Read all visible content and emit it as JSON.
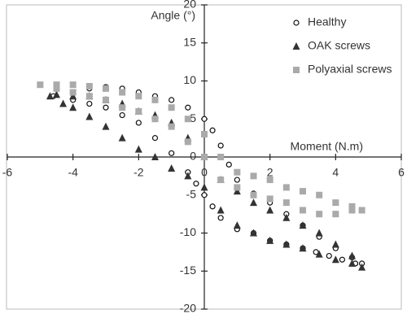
{
  "chart_data": {
    "type": "scatter",
    "xlabel": "Moment (N.m)",
    "ylabel": "Angle (°)",
    "xlim": [
      -6,
      6
    ],
    "ylim": [
      -20,
      20
    ],
    "xticks": [
      -6,
      -4,
      -2,
      0,
      2,
      4,
      6
    ],
    "yticks": [
      -20,
      -15,
      -10,
      -5,
      0,
      5,
      10,
      15,
      20
    ],
    "legend": "upper right",
    "series": [
      {
        "name": "Healthy",
        "color": "#111111",
        "marker": "open-circle",
        "x": [
          -4.6,
          -4,
          -3.5,
          -3,
          -2.5,
          -2,
          -1.5,
          -1,
          -0.5,
          0,
          0.25,
          0.5,
          0.75,
          1,
          1.5,
          2,
          2.5,
          3,
          3.5,
          4,
          4.5,
          4.8,
          4.6,
          4.2,
          3.8,
          3.4,
          3,
          2.5,
          2,
          1.5,
          1,
          0.5,
          0.25,
          0,
          -0.25,
          -0.5,
          -1,
          -1.5,
          -2,
          -2.5,
          -3,
          -3.5,
          -4
        ],
        "y": [
          8,
          8.5,
          9,
          9.2,
          9,
          8.5,
          8,
          7.5,
          6.5,
          5,
          3.5,
          1.5,
          -1,
          -3,
          -4.8,
          -6,
          -7.5,
          -9,
          -10.5,
          -12,
          -13.2,
          -14,
          -14,
          -13.5,
          -13,
          -12.5,
          -12,
          -11.5,
          -11,
          -10,
          -9.5,
          -8,
          -6.5,
          -5,
          -3.5,
          -2,
          0.5,
          2.5,
          4.5,
          5.5,
          6.5,
          7,
          7.5
        ]
      },
      {
        "name": "OAK screws",
        "color": "#333333",
        "marker": "triangle",
        "x": [
          -4.7,
          -4.3,
          -4,
          -3.5,
          -3,
          -2.5,
          -2,
          -1.5,
          -1,
          -0.5,
          0,
          0.5,
          1,
          1.5,
          2,
          2.5,
          3,
          3.5,
          4,
          4.5,
          4.8,
          4.5,
          4,
          3.5,
          3,
          2.5,
          2,
          1.5,
          1,
          0.5,
          0,
          -0.5,
          -1,
          -1.5,
          -2,
          -2.5,
          -3,
          -3.5,
          -4,
          -4.5
        ],
        "y": [
          8,
          7,
          6.5,
          5.3,
          4,
          2.5,
          1,
          0,
          -1.5,
          -2.5,
          -4,
          -7,
          -9,
          -10,
          -11,
          -11.5,
          -12,
          -12.8,
          -13.5,
          -14,
          -14.5,
          -13,
          -11.5,
          -10,
          -9,
          -8,
          -7,
          -6,
          -4.5,
          -3,
          0,
          2.5,
          4.5,
          5.5,
          6,
          7,
          7.5,
          8,
          8,
          8.2
        ]
      },
      {
        "name": "Polyaxial screws",
        "color": "#aaaaaa",
        "marker": "square",
        "x": [
          -5,
          -4.5,
          -4,
          -3.5,
          -3,
          -2.5,
          -2,
          -1.5,
          -1,
          -0.5,
          0,
          0.5,
          1,
          1.5,
          2,
          2.5,
          3,
          3.5,
          4,
          4.5,
          4.8,
          4.5,
          4,
          3.5,
          3,
          2.5,
          2,
          1.5,
          1,
          0.5,
          0,
          -0.5,
          -1,
          -1.5,
          -2,
          -2.5,
          -3,
          -3.5,
          -4,
          -4.5
        ],
        "y": [
          9.5,
          9.5,
          9.5,
          9.3,
          9,
          8.5,
          8,
          7.5,
          6.5,
          5,
          3,
          0,
          -2,
          -2.5,
          -3,
          -4,
          -4.5,
          -5,
          -6,
          -6.5,
          -7,
          -7,
          -7.5,
          -7.5,
          -7,
          -6,
          -5.5,
          -5,
          -4,
          -3,
          0,
          2,
          4,
          5,
          6,
          6.5,
          7.5,
          8,
          8.5,
          9
        ]
      }
    ]
  }
}
